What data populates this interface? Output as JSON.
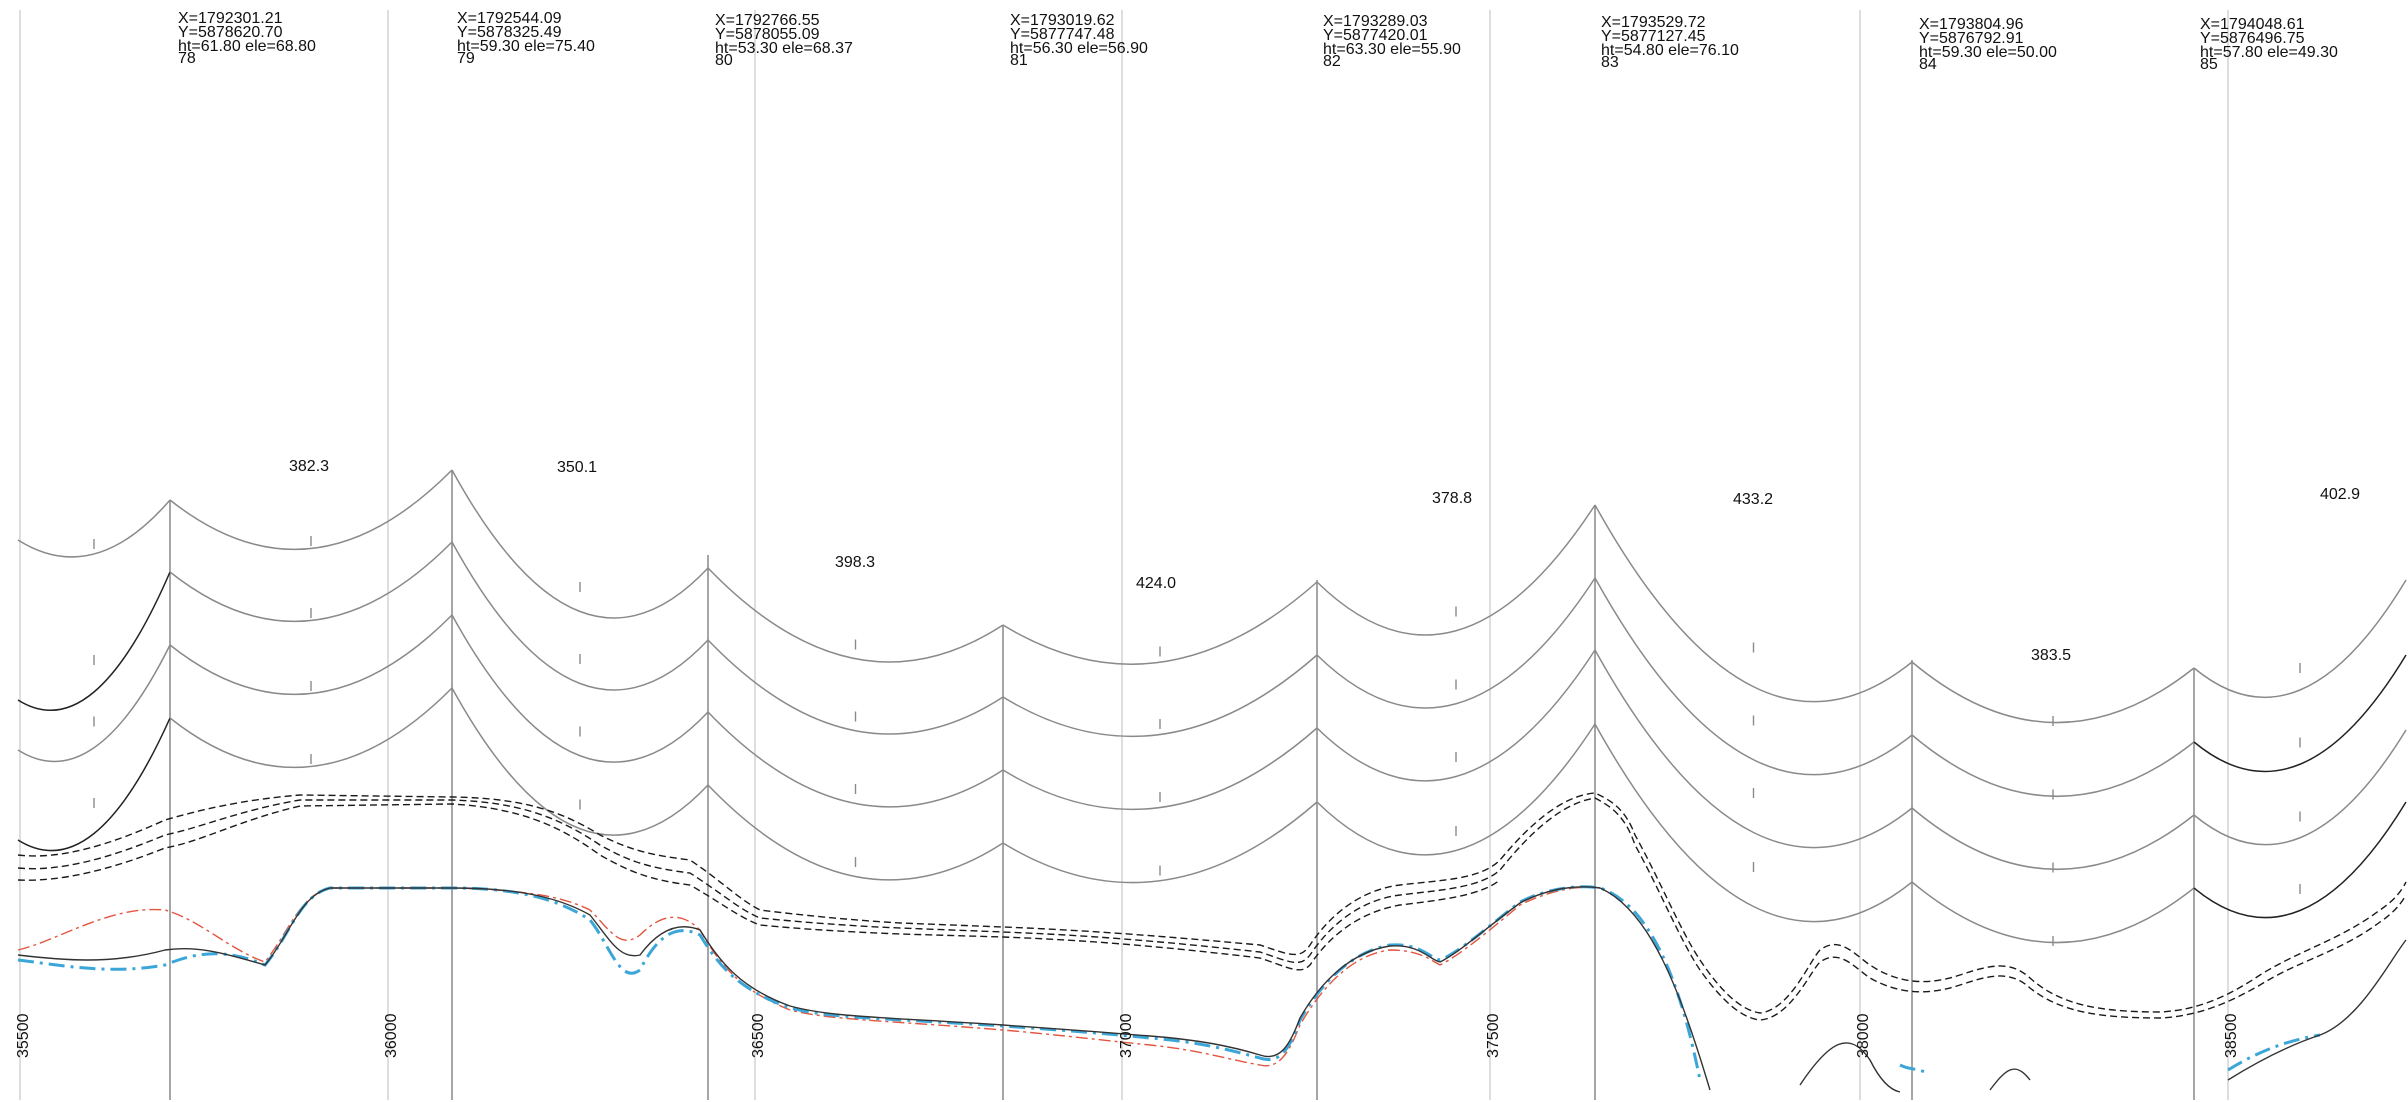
{
  "towers": [
    {
      "number": "78",
      "x": "X=1792301.21",
      "y": "Y=5878620.70",
      "ht_ele": "ht=61.80 ele=68.80"
    },
    {
      "number": "79",
      "x": "X=1792544.09",
      "y": "Y=5878325.49",
      "ht_ele": "ht=59.30 ele=75.40"
    },
    {
      "number": "80",
      "x": "X=1792766.55",
      "y": "Y=5878055.09",
      "ht_ele": "ht=53.30 ele=68.37"
    },
    {
      "number": "81",
      "x": "X=1793019.62",
      "y": "Y=5877747.48",
      "ht_ele": "ht=56.30 ele=56.90"
    },
    {
      "number": "82",
      "x": "X=1793289.03",
      "y": "Y=5877420.01",
      "ht_ele": "ht=63.30 ele=55.90"
    },
    {
      "number": "83",
      "x": "X=1793529.72",
      "y": "Y=5877127.45",
      "ht_ele": "ht=54.80 ele=76.10"
    },
    {
      "number": "84",
      "x": "X=1793804.96",
      "y": "Y=5876792.91",
      "ht_ele": "ht=59.30 ele=50.00"
    },
    {
      "number": "85",
      "x": "X=1794048.61",
      "y": "Y=5876496.75",
      "ht_ele": "ht=57.80 ele=49.30"
    }
  ],
  "spans": [
    "382.3",
    "350.1",
    "398.3",
    "424.0",
    "378.8",
    "433.2",
    "383.5",
    "402.9"
  ],
  "chainages": [
    "35500",
    "36000",
    "36500",
    "37000",
    "37500",
    "38000",
    "38500"
  ],
  "colors": {
    "conductor": "#8a8a8a",
    "conductor_dark": "#222222",
    "structure_line": "#9a9a9a",
    "ground": "#333333",
    "ground_red": "#e2553f",
    "ground_blue": "#3ba6d8",
    "clearance": "#1a1a1a"
  }
}
